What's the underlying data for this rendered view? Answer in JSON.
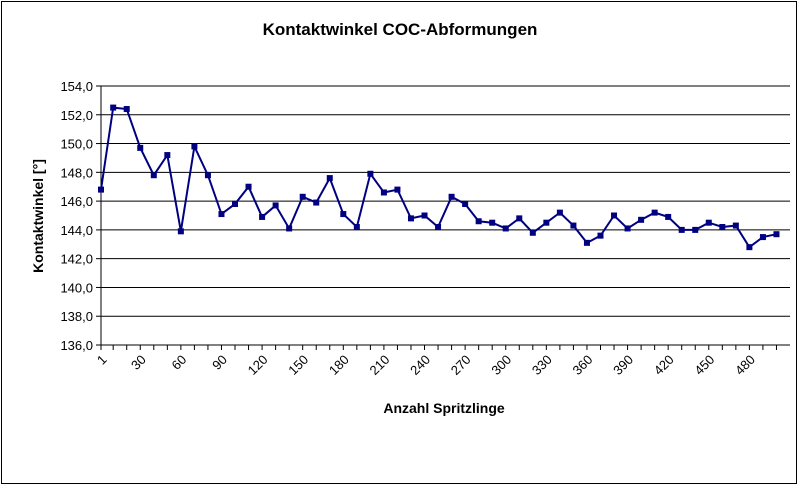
{
  "chart_data": {
    "type": "line",
    "title": "Kontaktwinkel COC-Abformungen",
    "xlabel": "Anzahl Spritzlinge",
    "ylabel": "Kontaktwinkel [°]",
    "ylim": [
      136,
      154
    ],
    "y_ticks": [
      "136,0",
      "138,0",
      "140,0",
      "142,0",
      "144,0",
      "146,0",
      "148,0",
      "150,0",
      "152,0",
      "154,0"
    ],
    "x_ticks": [
      "1",
      "30",
      "60",
      "90",
      "120",
      "150",
      "180",
      "210",
      "240",
      "270",
      "300",
      "330",
      "360",
      "390",
      "420",
      "450",
      "480"
    ],
    "grid": "horizontal",
    "series_color": "#000080",
    "series": [
      {
        "x": [
          1,
          10,
          20,
          30,
          40,
          50,
          60,
          70,
          80,
          90,
          100,
          110,
          120,
          130,
          140,
          150,
          160,
          170,
          180,
          190,
          200,
          210,
          220,
          230,
          240,
          250,
          260,
          270,
          280,
          290,
          300,
          310,
          320,
          330,
          340,
          350,
          360,
          370,
          380,
          390,
          400,
          410,
          420,
          430,
          440,
          450,
          460,
          470,
          480,
          490,
          500
        ],
        "values": [
          146.8,
          152.5,
          152.4,
          149.7,
          147.8,
          149.2,
          143.9,
          149.8,
          147.8,
          145.1,
          145.8,
          147.0,
          144.9,
          145.7,
          144.1,
          146.3,
          145.9,
          147.6,
          145.1,
          144.2,
          147.9,
          146.6,
          146.8,
          144.8,
          145.0,
          144.2,
          146.3,
          145.8,
          144.6,
          144.5,
          144.1,
          144.8,
          143.8,
          144.5,
          145.2,
          144.3,
          143.1,
          143.6,
          145.0,
          144.1,
          144.7,
          145.2,
          144.9,
          144.0,
          144.0,
          144.5,
          144.2,
          144.3,
          142.8,
          143.5,
          143.7
        ]
      }
    ]
  }
}
